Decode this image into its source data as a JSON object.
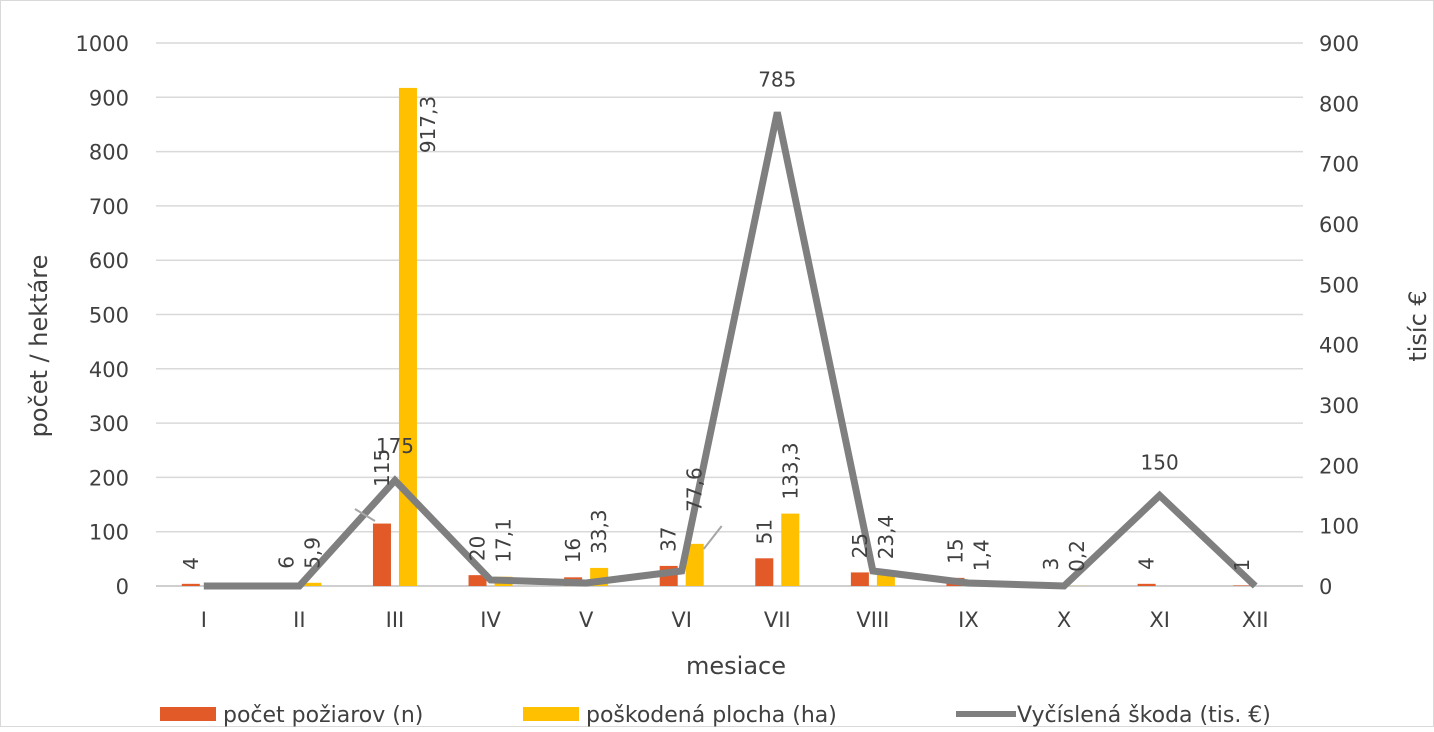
{
  "chart_data": {
    "type": "bar",
    "categories": [
      "I",
      "II",
      "III",
      "IV",
      "V",
      "VI",
      "VII",
      "VIII",
      "IX",
      "X",
      "XI",
      "XII"
    ],
    "series": [
      {
        "name": "počet požiarov (n)",
        "kind": "bar",
        "axis": "left",
        "color": "#e15a28",
        "values": [
          4,
          6,
          115,
          20,
          16,
          37,
          51,
          25,
          15,
          3,
          4,
          1
        ],
        "labels": [
          "4",
          "6",
          "115",
          "20",
          "16",
          "37",
          "51",
          "25",
          "15",
          "3",
          "4",
          "1"
        ]
      },
      {
        "name": "poškodená plocha (ha)",
        "kind": "bar",
        "axis": "left",
        "color": "#ffc000",
        "values": [
          0,
          5.9,
          917.3,
          17.1,
          33.3,
          77.6,
          133.3,
          23.4,
          1.4,
          0.2,
          0,
          0
        ],
        "labels": [
          "",
          "5,9",
          "917,3",
          "17,1",
          "33,3",
          "77,6",
          "133,3",
          "23,4",
          "1,4",
          "0,2",
          "",
          ""
        ]
      },
      {
        "name": "Vyčíslená škoda (tis. €)",
        "kind": "line",
        "axis": "right",
        "color": "#7f7f7f",
        "values": [
          0,
          0,
          175,
          10,
          5,
          25,
          785,
          25,
          5,
          0,
          150,
          0
        ],
        "labels": [
          "",
          "",
          "175",
          "",
          "",
          "",
          "785",
          "",
          "",
          "",
          "150",
          ""
        ]
      }
    ],
    "xlabel": "mesiace",
    "ylabel": "počet / hektáre",
    "y2label": "tisíc €",
    "ylim": [
      0,
      1000
    ],
    "y2lim": [
      0,
      900
    ],
    "yticks": [
      "0",
      "100",
      "200",
      "300",
      "400",
      "500",
      "600",
      "700",
      "800",
      "900",
      "1000"
    ],
    "y2ticks": [
      "0",
      "100",
      "200",
      "300",
      "400",
      "500",
      "600",
      "700",
      "800",
      "900"
    ],
    "grid": true,
    "legend": "bottom",
    "gridColor": "#d9d9d9"
  }
}
